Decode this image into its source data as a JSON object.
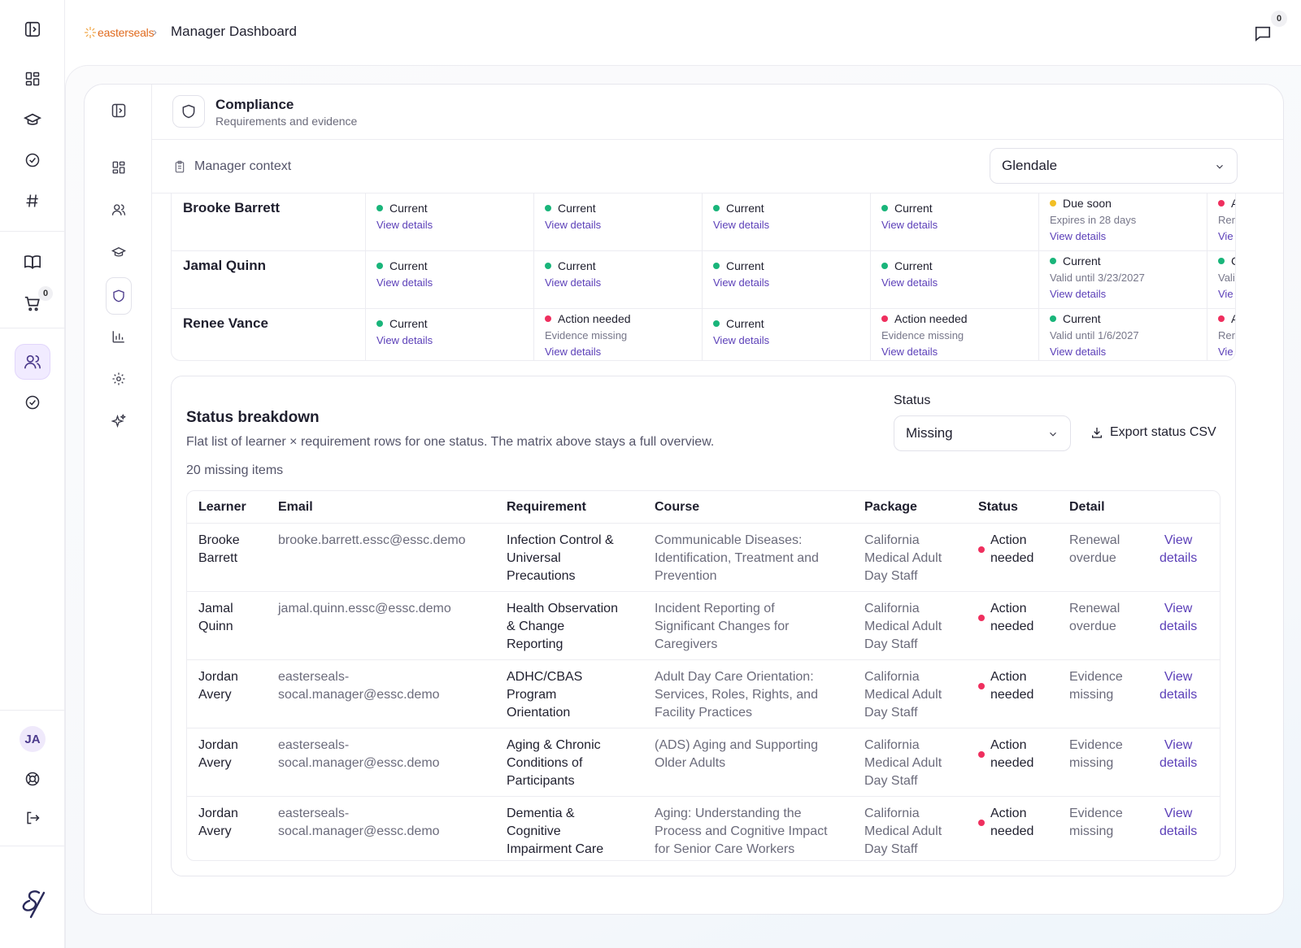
{
  "brand": {
    "logo_text": "easterseals",
    "breadcrumb_title": "Manager Dashboard"
  },
  "header": {
    "messages_count": "0"
  },
  "rail": {
    "cart_count": "0",
    "user_initials": "JA"
  },
  "compliance": {
    "title": "Compliance",
    "subtitle": "Requirements and evidence"
  },
  "context": {
    "label": "Manager context",
    "location": "Glendale"
  },
  "matrix": {
    "rows": [
      {
        "name": "Brooke Barrett",
        "cells": [
          {
            "status": "Current",
            "color": "green",
            "sub": "",
            "link": "View details"
          },
          {
            "status": "Current",
            "color": "green",
            "sub": "",
            "link": "View details"
          },
          {
            "status": "Current",
            "color": "green",
            "sub": "",
            "link": "View details"
          },
          {
            "status": "Current",
            "color": "green",
            "sub": "",
            "link": "View details"
          },
          {
            "status": "Due soon",
            "color": "yellow",
            "sub": "Expires in 28 days",
            "link": "View details"
          },
          {
            "status": "A",
            "color": "red",
            "sub": "Rer",
            "link": "Vie"
          }
        ]
      },
      {
        "name": "Jamal Quinn",
        "cells": [
          {
            "status": "Current",
            "color": "green",
            "sub": "",
            "link": "View details"
          },
          {
            "status": "Current",
            "color": "green",
            "sub": "",
            "link": "View details"
          },
          {
            "status": "Current",
            "color": "green",
            "sub": "",
            "link": "View details"
          },
          {
            "status": "Current",
            "color": "green",
            "sub": "",
            "link": "View details"
          },
          {
            "status": "Current",
            "color": "green",
            "sub": "Valid until 3/23/2027",
            "link": "View details"
          },
          {
            "status": "C",
            "color": "green",
            "sub": "Vali",
            "link": "Vie"
          }
        ]
      },
      {
        "name": "Renee Vance",
        "cells": [
          {
            "status": "Current",
            "color": "green",
            "sub": "",
            "link": "View details"
          },
          {
            "status": "Action needed",
            "color": "red",
            "sub": "Evidence missing",
            "link": "View details"
          },
          {
            "status": "Current",
            "color": "green",
            "sub": "",
            "link": "View details"
          },
          {
            "status": "Action needed",
            "color": "red",
            "sub": "Evidence missing",
            "link": "View details"
          },
          {
            "status": "Current",
            "color": "green",
            "sub": "Valid until 1/6/2027",
            "link": "View details"
          },
          {
            "status": "A",
            "color": "red",
            "sub": "Rer",
            "link": "Vie"
          }
        ]
      }
    ]
  },
  "breakdown": {
    "title": "Status breakdown",
    "description": "Flat list of learner × requirement rows for one status. The matrix above stays a full overview.",
    "count_text": "20 missing items",
    "status_label": "Status",
    "status_value": "Missing",
    "export_label": "Export status CSV",
    "columns": [
      "Learner",
      "Email",
      "Requirement",
      "Course",
      "Package",
      "Status",
      "Detail"
    ],
    "rows": [
      {
        "learner": [
          "Brooke",
          "Barrett"
        ],
        "email": [
          "brooke.barrett.essc@essc.demo"
        ],
        "requirement": [
          "Infection Control &",
          "Universal",
          "Precautions"
        ],
        "course": [
          "Communicable Diseases:",
          "Identification, Treatment and",
          "Prevention"
        ],
        "package": [
          "California",
          "Medical Adult",
          "Day Staff"
        ],
        "status": [
          "Action",
          "needed"
        ],
        "detail": [
          "Renewal",
          "overdue"
        ],
        "link": [
          "View",
          "details"
        ]
      },
      {
        "learner": [
          "Jamal",
          "Quinn"
        ],
        "email": [
          "jamal.quinn.essc@essc.demo"
        ],
        "requirement": [
          "Health Observation",
          "& Change",
          "Reporting"
        ],
        "course": [
          "Incident Reporting of",
          "Significant Changes for",
          "Caregivers"
        ],
        "package": [
          "California",
          "Medical Adult",
          "Day Staff"
        ],
        "status": [
          "Action",
          "needed"
        ],
        "detail": [
          "Renewal",
          "overdue"
        ],
        "link": [
          "View",
          "details"
        ]
      },
      {
        "learner": [
          "Jordan",
          "Avery"
        ],
        "email": [
          "easterseals-",
          "socal.manager@essc.demo"
        ],
        "requirement": [
          "ADHC/CBAS",
          "Program",
          "Orientation"
        ],
        "course": [
          "Adult Day Care Orientation:",
          "Services, Roles, Rights, and",
          "Facility Practices"
        ],
        "package": [
          "California",
          "Medical Adult",
          "Day Staff"
        ],
        "status": [
          "Action",
          "needed"
        ],
        "detail": [
          "Evidence",
          "missing"
        ],
        "link": [
          "View",
          "details"
        ]
      },
      {
        "learner": [
          "Jordan",
          "Avery"
        ],
        "email": [
          "easterseals-",
          "socal.manager@essc.demo"
        ],
        "requirement": [
          "Aging & Chronic",
          "Conditions of",
          "Participants"
        ],
        "course": [
          "(ADS) Aging and Supporting",
          "Older Adults"
        ],
        "package": [
          "California",
          "Medical Adult",
          "Day Staff"
        ],
        "status": [
          "Action",
          "needed"
        ],
        "detail": [
          "Evidence",
          "missing"
        ],
        "link": [
          "View",
          "details"
        ]
      },
      {
        "learner": [
          "Jordan",
          "Avery"
        ],
        "email": [
          "easterseals-",
          "socal.manager@essc.demo"
        ],
        "requirement": [
          "Dementia &",
          "Cognitive",
          "Impairment Care"
        ],
        "course": [
          "Aging: Understanding the",
          "Process and Cognitive Impact",
          "for Senior Care Workers"
        ],
        "package": [
          "California",
          "Medical Adult",
          "Day Staff"
        ],
        "status": [
          "Action",
          "needed"
        ],
        "detail": [
          "Evidence",
          "missing"
        ],
        "link": [
          "View",
          "details"
        ]
      }
    ]
  },
  "colors": {
    "green": "#19b57a",
    "red": "#ef2f5e",
    "yellow": "#f2bf24",
    "link": "#5b3fb8",
    "accent_bg": "#f1ebff"
  },
  "icons": [
    "sidebar-toggle-icon",
    "dashboard-icon",
    "graduation-cap-icon",
    "check-circle-icon",
    "hash-icon",
    "book-icon",
    "cart-icon",
    "users-icon",
    "help-icon",
    "logout-icon",
    "message-icon",
    "shield-icon",
    "clipboard-icon",
    "chart-icon",
    "gear-icon",
    "sparkle-icon",
    "download-icon",
    "chevron-down-icon"
  ]
}
